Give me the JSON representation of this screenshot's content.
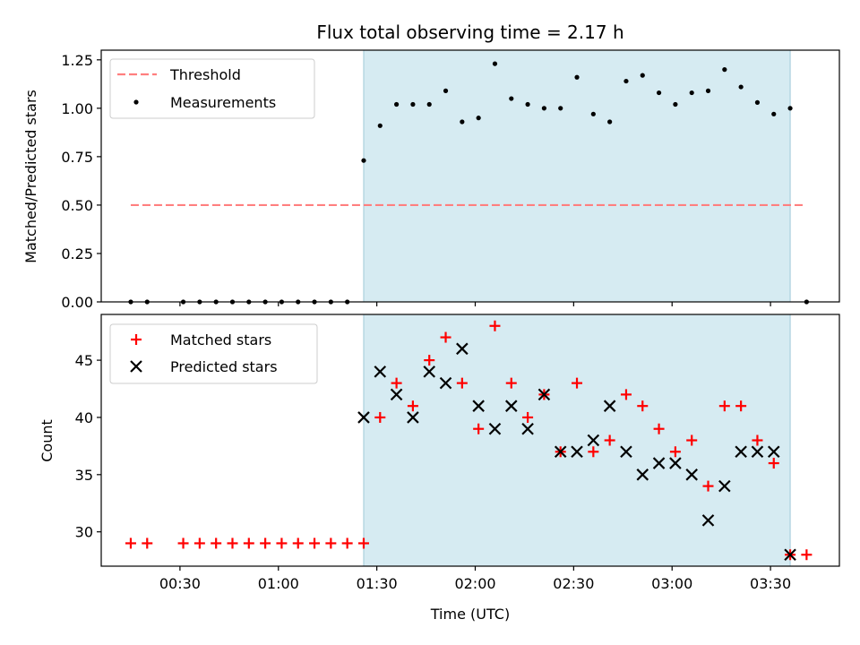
{
  "chart_data": [
    {
      "type": "scatter",
      "title": "Flux total observing time = 2.17 h",
      "xlabel": "",
      "ylabel": "Matched/Predicted stars",
      "ylim": [
        0,
        1.3
      ],
      "yticks": [
        "0.00",
        "0.25",
        "0.50",
        "0.75",
        "1.00",
        "1.25"
      ],
      "ytick_values": [
        0,
        0.25,
        0.5,
        0.75,
        1.0,
        1.25
      ],
      "legend_position": "upper-left",
      "threshold": {
        "name": "Threshold",
        "value": 0.5,
        "x_start": "00:15",
        "x_end": "03:40",
        "color": "#ff7f7f"
      },
      "highlight_span": {
        "x_start": "01:26",
        "x_end": "03:36",
        "color": "#add8e6"
      },
      "series": [
        {
          "name": "Measurements",
          "color": "#000000",
          "marker": "dot",
          "x": [
            "00:15",
            "00:20",
            "00:31",
            "00:36",
            "00:41",
            "00:46",
            "00:51",
            "00:56",
            "01:01",
            "01:06",
            "01:11",
            "01:16",
            "01:21",
            "01:26",
            "01:31",
            "01:36",
            "01:41",
            "01:46",
            "01:51",
            "01:56",
            "02:01",
            "02:06",
            "02:11",
            "02:16",
            "02:21",
            "02:26",
            "02:31",
            "02:36",
            "02:41",
            "02:46",
            "02:51",
            "02:56",
            "03:01",
            "03:06",
            "03:11",
            "03:16",
            "03:21",
            "03:26",
            "03:31",
            "03:36",
            "03:41"
          ],
          "y": [
            0,
            0,
            0,
            0,
            0,
            0,
            0,
            0,
            0,
            0,
            0,
            0,
            0,
            0.73,
            0.91,
            1.02,
            1.02,
            1.02,
            1.09,
            0.93,
            0.95,
            1.23,
            1.05,
            1.02,
            1.0,
            1.0,
            1.16,
            0.97,
            0.93,
            1.14,
            1.17,
            1.08,
            1.02,
            1.08,
            1.09,
            1.2,
            1.11,
            1.03,
            0.97,
            1.0,
            0
          ]
        }
      ]
    },
    {
      "type": "scatter",
      "title": "",
      "xlabel": "Time (UTC)",
      "ylabel": "Count",
      "ylim": [
        27,
        49
      ],
      "yticks": [
        "30",
        "35",
        "40",
        "45"
      ],
      "ytick_values": [
        30,
        35,
        40,
        45
      ],
      "xticks": [
        "00:30",
        "01:00",
        "01:30",
        "02:00",
        "02:30",
        "03:00",
        "03:30"
      ],
      "xlim": [
        "00:06",
        "03:51"
      ],
      "legend_position": "upper-left",
      "highlight_span": {
        "x_start": "01:26",
        "x_end": "03:36",
        "color": "#add8e6"
      },
      "series": [
        {
          "name": "Matched stars",
          "color": "#ff0000",
          "marker": "plus",
          "x": [
            "00:15",
            "00:20",
            "00:31",
            "00:36",
            "00:41",
            "00:46",
            "00:51",
            "00:56",
            "01:01",
            "01:06",
            "01:11",
            "01:16",
            "01:21",
            "01:26",
            "01:31",
            "01:36",
            "01:41",
            "01:46",
            "01:51",
            "01:56",
            "02:01",
            "02:06",
            "02:11",
            "02:16",
            "02:21",
            "02:26",
            "02:31",
            "02:36",
            "02:41",
            "02:46",
            "02:51",
            "02:56",
            "03:01",
            "03:06",
            "03:11",
            "03:16",
            "03:21",
            "03:26",
            "03:31",
            "03:36",
            "03:41"
          ],
          "y": [
            29,
            29,
            29,
            29,
            29,
            29,
            29,
            29,
            29,
            29,
            29,
            29,
            29,
            29,
            40,
            43,
            41,
            45,
            47,
            43,
            39,
            48,
            43,
            40,
            42,
            37,
            43,
            37,
            38,
            42,
            41,
            39,
            37,
            38,
            34,
            41,
            41,
            38,
            36,
            28,
            28
          ]
        },
        {
          "name": "Predicted stars",
          "color": "#000000",
          "marker": "x",
          "x": [
            "01:26",
            "01:31",
            "01:36",
            "01:41",
            "01:46",
            "01:51",
            "01:56",
            "02:01",
            "02:06",
            "02:11",
            "02:16",
            "02:21",
            "02:26",
            "02:31",
            "02:36",
            "02:41",
            "02:46",
            "02:51",
            "02:56",
            "03:01",
            "03:06",
            "03:11",
            "03:16",
            "03:21",
            "03:26",
            "03:31",
            "03:36"
          ],
          "y": [
            40,
            44,
            42,
            40,
            44,
            43,
            46,
            41,
            39,
            41,
            39,
            42,
            37,
            37,
            38,
            41,
            37,
            35,
            36,
            36,
            35,
            31,
            34,
            37,
            37,
            37,
            28
          ]
        }
      ]
    }
  ]
}
